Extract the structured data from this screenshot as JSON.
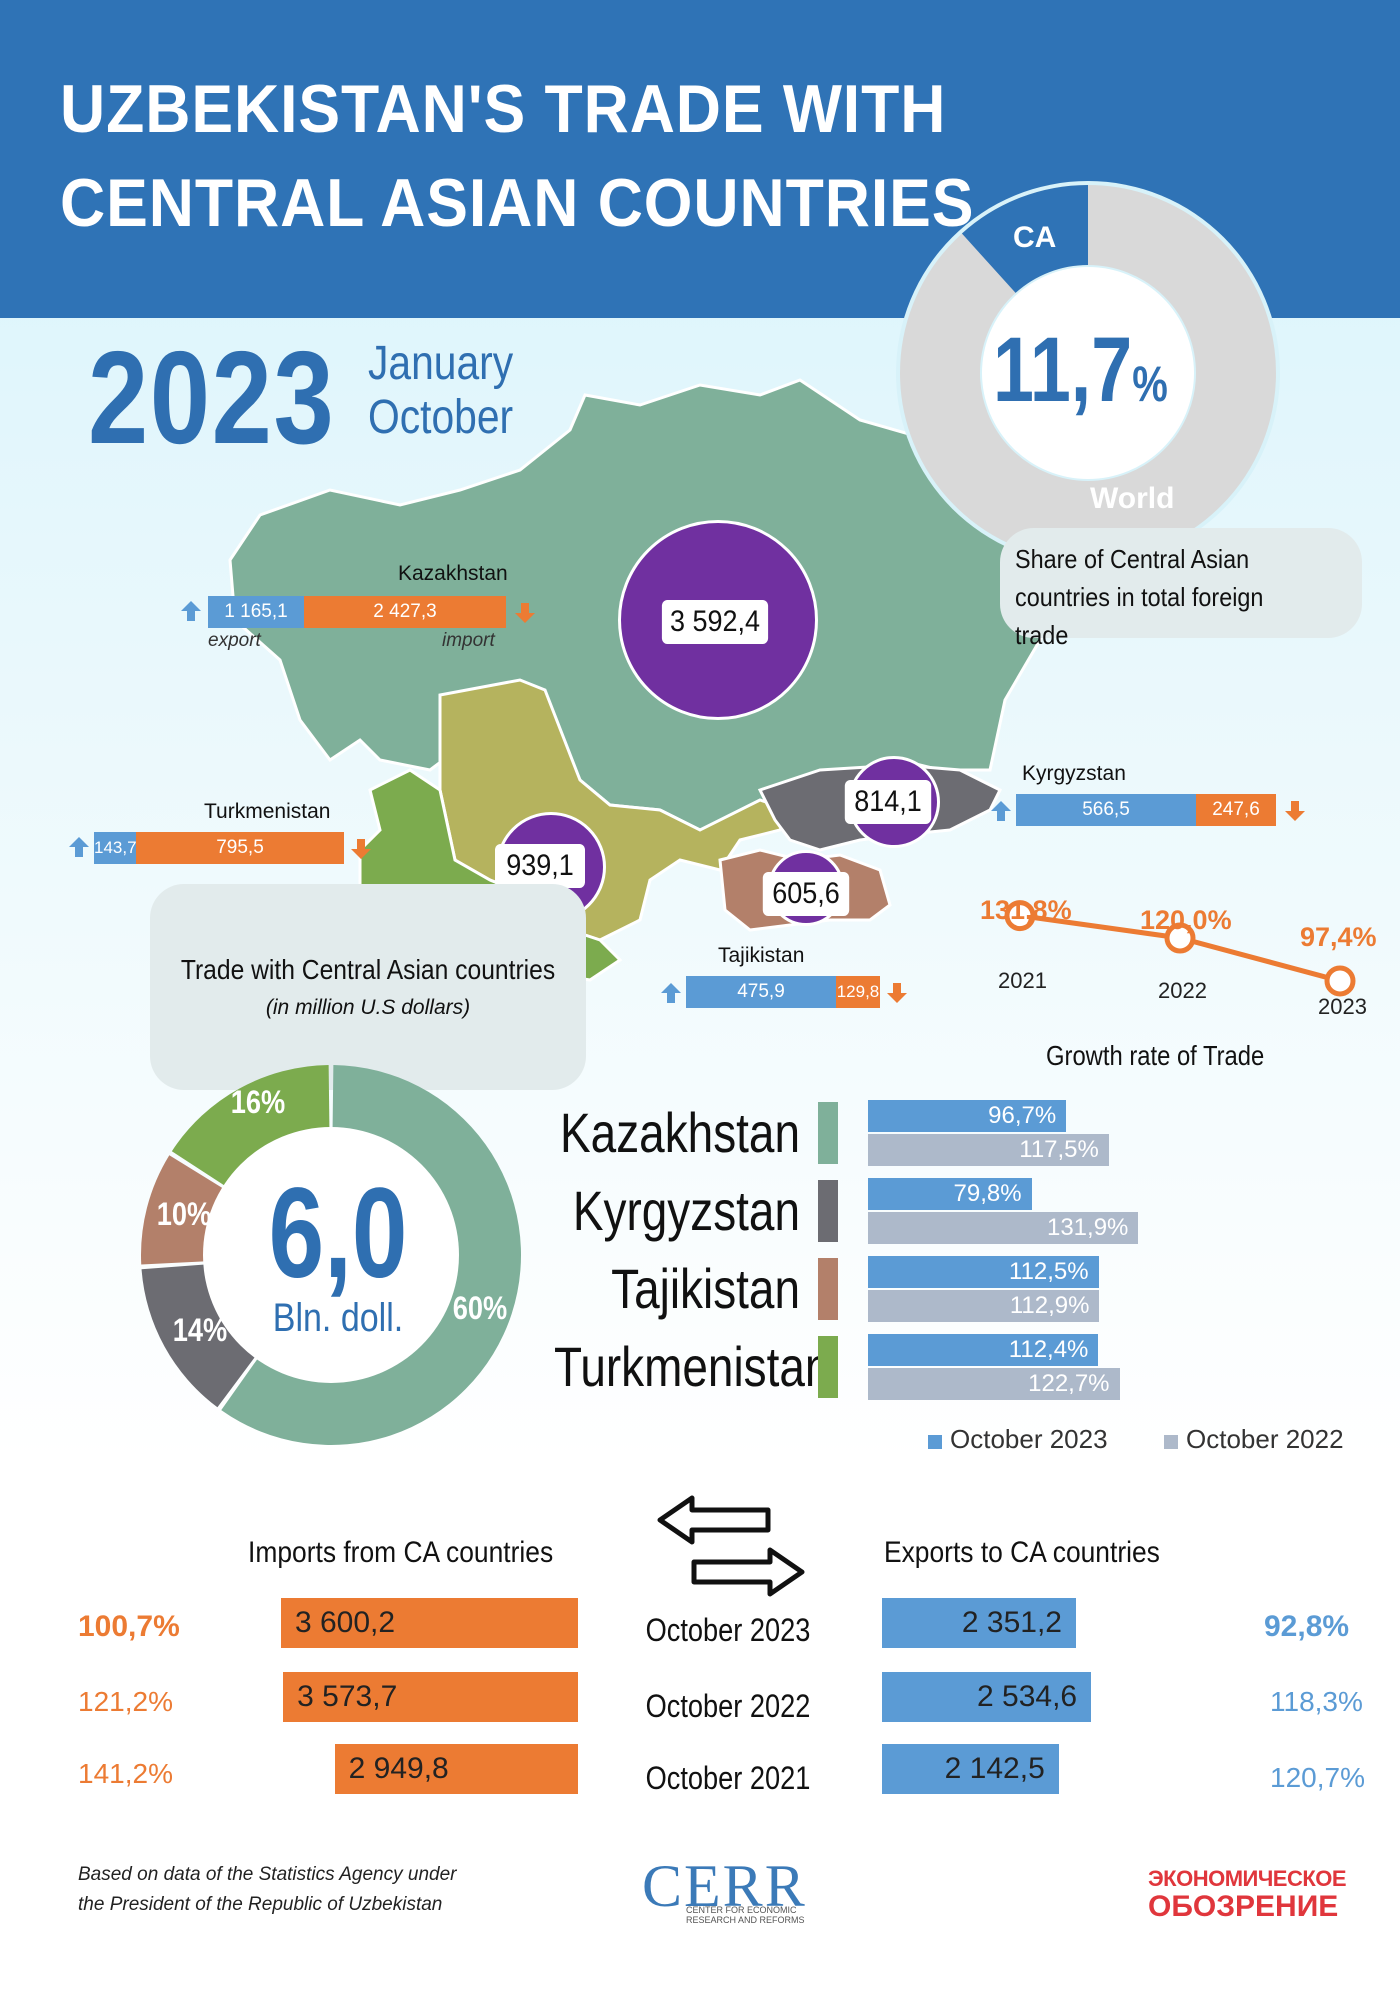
{
  "title": "UZBEKISTAN'S TRADE WITH CENTRAL ASIAN COUNTRIES",
  "year": "2023",
  "period_line1": "January",
  "period_line2": "October",
  "share": {
    "label_ca": "CA",
    "label_world": "World",
    "value_text": "11,7",
    "unit": "%",
    "caption": "Share of Central Asian countries in total foreign trade"
  },
  "map": {
    "callout": "Trade with Central Asian countries",
    "callout_sub": "(in million U.S dollars)",
    "export_label": "export",
    "import_label": "import",
    "countries": [
      {
        "name": "Kazakhstan",
        "total": "3 592,4",
        "export": "1 165,1",
        "import": "2 427,3"
      },
      {
        "name": "Kyrgyzstan",
        "total": "814,1",
        "export": "566,5",
        "import": "247,6"
      },
      {
        "name": "Tajikistan",
        "total": "605,6",
        "export": "475,9",
        "import": "129,8"
      },
      {
        "name": "Turkmenistan",
        "total": "939,1",
        "export": "143,7",
        "import": "795,5"
      }
    ]
  },
  "colors": {
    "header": "#2f73b6",
    "kazakhstan": "#7fb09a",
    "kyrgyzstan": "#6c6c72",
    "tajikistan": "#b3806a",
    "turkmenistan": "#7cab4e",
    "uzbekistan": "#b5b35e",
    "bubble": "#7030a0",
    "export": "#5b9bd5",
    "import": "#ec7b33",
    "oct2022": "#adb9ca"
  },
  "chart_data": [
    {
      "type": "line",
      "title": "",
      "x": [
        "2021",
        "2022",
        "2023"
      ],
      "values": [
        131.8,
        120.0,
        97.4
      ],
      "value_labels": [
        "131,8%",
        "120,0%",
        "97,4%"
      ]
    },
    {
      "type": "pie",
      "title": "",
      "center_value": "6,0",
      "center_unit": "Bln. doll.",
      "slices": [
        {
          "name": "Kazakhstan",
          "value": 60,
          "label": "60%"
        },
        {
          "name": "Kyrgyzstan",
          "value": 14,
          "label": "14%"
        },
        {
          "name": "Tajikistan",
          "value": 10,
          "label": "10%"
        },
        {
          "name": "Turkmenistan",
          "value": 16,
          "label": "16%"
        }
      ]
    },
    {
      "type": "bar",
      "title": "Growth rate of Trade",
      "categories": [
        "Kazakhstan",
        "Kyrgyzstan",
        "Tajikistan",
        "Turkmenistan"
      ],
      "series": [
        {
          "name": "October 2023",
          "values": [
            96.7,
            79.8,
            112.5,
            112.4
          ],
          "labels": [
            "96,7%",
            "79,8%",
            "112,5%",
            "112,4%"
          ]
        },
        {
          "name": "October 2022",
          "values": [
            117.5,
            131.9,
            112.9,
            122.7
          ],
          "labels": [
            "117,5%",
            "131,9%",
            "112,9%",
            "122,7%"
          ]
        }
      ]
    },
    {
      "type": "bar",
      "title": "Imports from CA countries",
      "categories": [
        "October 2023",
        "October 2022",
        "October 2021"
      ],
      "values": [
        3600.2,
        3573.7,
        2949.8
      ],
      "value_labels": [
        "3 600,2",
        "3 573,7",
        "2 949,8"
      ],
      "growth_labels": [
        "100,7%",
        "121,2%",
        "141,2%"
      ]
    },
    {
      "type": "bar",
      "title": "Exports to CA countries",
      "categories": [
        "October 2023",
        "October 2022",
        "October 2021"
      ],
      "values": [
        2351.2,
        2534.6,
        2142.5
      ],
      "value_labels": [
        "2 351,2",
        "2 534,6",
        "2 142,5"
      ],
      "growth_labels": [
        "92,8%",
        "118,3%",
        "120,7%"
      ]
    }
  ],
  "footer": {
    "note_line1": "Based on data of the Statistics Agency under",
    "note_line2": "the President of the Republic of Uzbekistan",
    "logo1": "CERR",
    "logo1_sub1": "CENTER FOR ECONOMIC",
    "logo1_sub2": "RESEARCH AND REFORMS",
    "logo2_line1": "ЭКОНОМИЧЕСКОЕ",
    "logo2_line2": "ОБОЗРЕНИЕ"
  }
}
